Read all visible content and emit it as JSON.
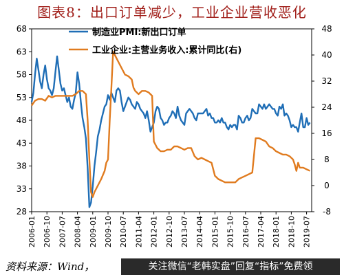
{
  "title": "图表8：出口订单减少，工业企业营收恶化",
  "source": "资料来源：Wind，",
  "watermark": "关注微信“老韩实盘”回复“指标”免费领",
  "colors": {
    "pmi": "#1f6eb6",
    "revenue": "#e07b1f",
    "title": "#a11f1a"
  },
  "chart_data": {
    "type": "line",
    "x_ticks": [
      "2006-01",
      "2006-10",
      "2007-07",
      "2008-04",
      "2009-01",
      "2009-10",
      "2010-07",
      "2011-04",
      "2012-01",
      "2012-10",
      "2013-07",
      "2014-04",
      "2015-01",
      "2015-10",
      "2016-07",
      "2017-04",
      "2018-01",
      "2018-10",
      "2019-07"
    ],
    "y_left": {
      "range": [
        28,
        68
      ],
      "ticks": [
        28,
        33,
        38,
        43,
        48,
        53,
        58,
        63,
        68
      ]
    },
    "y_right": {
      "range": [
        -8,
        48
      ],
      "ticks": [
        -8,
        0,
        8,
        16,
        24,
        32,
        40,
        48
      ]
    },
    "grid": false,
    "legend_position": "top-center",
    "series": [
      {
        "name": "制造业PMI:新出口订单",
        "axis": "left",
        "points": [
          [
            "2006-01",
            52.0
          ],
          [
            "2006-02",
            54.0
          ],
          [
            "2006-03",
            58.0
          ],
          [
            "2006-04",
            61.5
          ],
          [
            "2006-05",
            59.0
          ],
          [
            "2006-06",
            56.5
          ],
          [
            "2006-07",
            55.0
          ],
          [
            "2006-08",
            58.0
          ],
          [
            "2006-09",
            60.0
          ],
          [
            "2006-10",
            57.0
          ],
          [
            "2006-11",
            55.0
          ],
          [
            "2006-12",
            54.5
          ],
          [
            "2007-01",
            53.5
          ],
          [
            "2007-02",
            55.0
          ],
          [
            "2007-03",
            58.5
          ],
          [
            "2007-04",
            62.0
          ],
          [
            "2007-05",
            59.0
          ],
          [
            "2007-06",
            56.0
          ],
          [
            "2007-07",
            54.5
          ],
          [
            "2007-08",
            55.0
          ],
          [
            "2007-09",
            53.5
          ],
          [
            "2007-10",
            52.0
          ],
          [
            "2007-11",
            53.0
          ],
          [
            "2007-12",
            51.0
          ],
          [
            "2008-01",
            50.5
          ],
          [
            "2008-02",
            52.5
          ],
          [
            "2008-03",
            54.0
          ],
          [
            "2008-04",
            58.5
          ],
          [
            "2008-05",
            56.0
          ],
          [
            "2008-06",
            52.0
          ],
          [
            "2008-07",
            48.5
          ],
          [
            "2008-08",
            46.5
          ],
          [
            "2008-09",
            44.0
          ],
          [
            "2008-10",
            37.5
          ],
          [
            "2008-11",
            29.0
          ],
          [
            "2008-12",
            30.0
          ],
          [
            "2009-01",
            33.5
          ],
          [
            "2009-02",
            38.0
          ],
          [
            "2009-03",
            41.0
          ],
          [
            "2009-04",
            44.5
          ],
          [
            "2009-05",
            46.0
          ],
          [
            "2009-06",
            48.0
          ],
          [
            "2009-07",
            49.5
          ],
          [
            "2009-08",
            51.0
          ],
          [
            "2009-09",
            51.5
          ],
          [
            "2009-10",
            53.5
          ],
          [
            "2009-11",
            52.5
          ],
          [
            "2009-12",
            54.0
          ],
          [
            "2010-01",
            53.0
          ],
          [
            "2010-02",
            52.0
          ],
          [
            "2010-03",
            54.5
          ],
          [
            "2010-04",
            55.0
          ],
          [
            "2010-05",
            54.5
          ],
          [
            "2010-06",
            52.0
          ],
          [
            "2010-07",
            50.0
          ],
          [
            "2010-08",
            51.0
          ],
          [
            "2010-09",
            52.0
          ],
          [
            "2010-10",
            53.0
          ],
          [
            "2010-11",
            52.5
          ],
          [
            "2010-12",
            51.5
          ],
          [
            "2011-01",
            51.0
          ],
          [
            "2011-02",
            50.5
          ],
          [
            "2011-03",
            52.0
          ],
          [
            "2011-04",
            51.5
          ],
          [
            "2011-05",
            50.5
          ],
          [
            "2011-06",
            50.0
          ],
          [
            "2011-07",
            49.5
          ],
          [
            "2011-08",
            48.5
          ],
          [
            "2011-09",
            50.0
          ],
          [
            "2011-10",
            48.0
          ],
          [
            "2011-11",
            45.5
          ],
          [
            "2011-12",
            46.5
          ],
          [
            "2012-01",
            47.5
          ],
          [
            "2012-02",
            50.0
          ],
          [
            "2012-03",
            51.0
          ],
          [
            "2012-04",
            50.5
          ],
          [
            "2012-05",
            48.5
          ],
          [
            "2012-06",
            48.0
          ],
          [
            "2012-07",
            47.0
          ],
          [
            "2012-08",
            47.5
          ],
          [
            "2012-09",
            47.5
          ],
          [
            "2012-10",
            48.5
          ],
          [
            "2012-11",
            49.0
          ],
          [
            "2012-12",
            50.0
          ],
          [
            "2013-01",
            49.5
          ],
          [
            "2013-02",
            48.5
          ],
          [
            "2013-03",
            51.0
          ],
          [
            "2013-04",
            49.0
          ],
          [
            "2013-05",
            48.0
          ],
          [
            "2013-06",
            47.5
          ],
          [
            "2013-07",
            47.0
          ],
          [
            "2013-08",
            49.5
          ],
          [
            "2013-09",
            50.0
          ],
          [
            "2013-10",
            50.5
          ],
          [
            "2013-11",
            50.0
          ],
          [
            "2013-12",
            49.5
          ],
          [
            "2014-01",
            48.5
          ],
          [
            "2014-02",
            48.0
          ],
          [
            "2014-03",
            49.5
          ],
          [
            "2014-04",
            49.5
          ],
          [
            "2014-05",
            49.5
          ],
          [
            "2014-06",
            49.5
          ],
          [
            "2014-07",
            50.0
          ],
          [
            "2014-08",
            50.5
          ],
          [
            "2014-09",
            49.0
          ],
          [
            "2014-10",
            49.5
          ],
          [
            "2014-11",
            48.5
          ],
          [
            "2014-12",
            48.5
          ],
          [
            "2015-01",
            47.5
          ],
          [
            "2015-02",
            47.5
          ],
          [
            "2015-03",
            48.0
          ],
          [
            "2015-04",
            47.5
          ],
          [
            "2015-05",
            48.5
          ],
          [
            "2015-06",
            47.5
          ],
          [
            "2015-07",
            47.5
          ],
          [
            "2015-08",
            46.5
          ],
          [
            "2015-09",
            46.0
          ],
          [
            "2015-10",
            47.0
          ],
          [
            "2015-11",
            46.5
          ],
          [
            "2015-12",
            47.0
          ],
          [
            "2016-01",
            47.0
          ],
          [
            "2016-02",
            46.0
          ],
          [
            "2016-03",
            49.0
          ],
          [
            "2016-04",
            48.5
          ],
          [
            "2016-05",
            47.5
          ],
          [
            "2016-06",
            47.5
          ],
          [
            "2016-07",
            48.5
          ],
          [
            "2016-08",
            49.0
          ],
          [
            "2016-09",
            48.0
          ],
          [
            "2016-10",
            48.5
          ],
          [
            "2016-11",
            50.5
          ],
          [
            "2016-12",
            50.0
          ],
          [
            "2017-01",
            49.5
          ],
          [
            "2017-02",
            49.5
          ],
          [
            "2017-03",
            51.5
          ],
          [
            "2017-04",
            51.0
          ],
          [
            "2017-05",
            50.5
          ],
          [
            "2017-06",
            51.5
          ],
          [
            "2017-07",
            50.5
          ],
          [
            "2017-08",
            51.0
          ],
          [
            "2017-09",
            51.5
          ],
          [
            "2017-10",
            51.0
          ],
          [
            "2017-11",
            50.5
          ],
          [
            "2017-12",
            50.5
          ],
          [
            "2018-01",
            49.5
          ],
          [
            "2018-02",
            49.0
          ],
          [
            "2018-03",
            51.0
          ],
          [
            "2018-04",
            50.5
          ],
          [
            "2018-05",
            51.5
          ],
          [
            "2018-06",
            49.0
          ],
          [
            "2018-07",
            49.5
          ],
          [
            "2018-08",
            49.0
          ],
          [
            "2018-09",
            48.0
          ],
          [
            "2018-10",
            46.5
          ],
          [
            "2018-11",
            47.0
          ],
          [
            "2018-12",
            46.5
          ],
          [
            "2019-01",
            46.5
          ],
          [
            "2019-02",
            45.5
          ],
          [
            "2019-03",
            47.5
          ],
          [
            "2019-04",
            49.5
          ],
          [
            "2019-05",
            46.5
          ],
          [
            "2019-06",
            46.5
          ],
          [
            "2019-07",
            48.5
          ],
          [
            "2019-08",
            47.0
          ],
          [
            "2019-09",
            47.5
          ]
        ]
      },
      {
        "name": "工业企业:主营业务收入:累计同比(右)",
        "axis": "right",
        "points": [
          [
            "2006-01",
            24.5
          ],
          [
            "2006-03",
            26.0
          ],
          [
            "2006-05",
            26.5
          ],
          [
            "2006-07",
            26.5
          ],
          [
            "2006-09",
            26.0
          ],
          [
            "2006-11",
            27.5
          ],
          [
            "2007-01",
            27.0
          ],
          [
            "2007-03",
            27.5
          ],
          [
            "2007-05",
            27.5
          ],
          [
            "2007-07",
            27.5
          ],
          [
            "2007-09",
            27.5
          ],
          [
            "2007-11",
            27.5
          ],
          [
            "2008-01",
            27.5
          ],
          [
            "2008-03",
            28.0
          ],
          [
            "2008-05",
            29.0
          ],
          [
            "2008-07",
            29.0
          ],
          [
            "2008-09",
            28.0
          ],
          [
            "2008-10",
            20.0
          ],
          [
            "2008-11",
            8.0
          ],
          [
            "2008-12",
            -2.0
          ],
          [
            "2009-01",
            -3.5
          ],
          [
            "2009-02",
            -2.0
          ],
          [
            "2009-04",
            0.0
          ],
          [
            "2009-06",
            2.0
          ],
          [
            "2009-08",
            4.5
          ],
          [
            "2009-09",
            7.0
          ],
          [
            "2009-10",
            8.0
          ],
          [
            "2009-11",
            20.0
          ],
          [
            "2009-12",
            30.0
          ],
          [
            "2010-01",
            41.0
          ],
          [
            "2010-02",
            40.0
          ],
          [
            "2010-04",
            38.0
          ],
          [
            "2010-06",
            36.0
          ],
          [
            "2010-08",
            34.0
          ],
          [
            "2010-10",
            33.5
          ],
          [
            "2010-12",
            32.5
          ],
          [
            "2011-01",
            30.0
          ],
          [
            "2011-02",
            29.0
          ],
          [
            "2011-04",
            28.0
          ],
          [
            "2011-06",
            29.0
          ],
          [
            "2011-08",
            29.0
          ],
          [
            "2011-10",
            28.5
          ],
          [
            "2011-12",
            27.5
          ],
          [
            "2012-01",
            13.5
          ],
          [
            "2012-03",
            11.5
          ],
          [
            "2012-05",
            10.5
          ],
          [
            "2012-07",
            10.5
          ],
          [
            "2012-09",
            11.0
          ],
          [
            "2012-11",
            11.0
          ],
          [
            "2013-01",
            12.0
          ],
          [
            "2013-03",
            12.0
          ],
          [
            "2013-05",
            11.5
          ],
          [
            "2013-07",
            11.0
          ],
          [
            "2013-09",
            11.5
          ],
          [
            "2013-11",
            11.5
          ],
          [
            "2014-01",
            9.0
          ],
          [
            "2014-03",
            8.0
          ],
          [
            "2014-05",
            8.5
          ],
          [
            "2014-07",
            8.0
          ],
          [
            "2014-09",
            7.5
          ],
          [
            "2014-11",
            7.0
          ],
          [
            "2015-01",
            3.0
          ],
          [
            "2015-03",
            2.0
          ],
          [
            "2015-05",
            1.5
          ],
          [
            "2015-07",
            1.0
          ],
          [
            "2015-09",
            1.0
          ],
          [
            "2015-11",
            1.0
          ],
          [
            "2016-01",
            1.0
          ],
          [
            "2016-03",
            2.0
          ],
          [
            "2016-05",
            2.5
          ],
          [
            "2016-07",
            3.0
          ],
          [
            "2016-09",
            3.5
          ],
          [
            "2016-11",
            4.0
          ],
          [
            "2017-01",
            14.5
          ],
          [
            "2017-03",
            14.5
          ],
          [
            "2017-05",
            14.0
          ],
          [
            "2017-07",
            13.5
          ],
          [
            "2017-09",
            12.0
          ],
          [
            "2017-11",
            11.5
          ],
          [
            "2018-01",
            10.5
          ],
          [
            "2018-03",
            10.0
          ],
          [
            "2018-05",
            9.5
          ],
          [
            "2018-07",
            9.5
          ],
          [
            "2018-09",
            9.0
          ],
          [
            "2018-10",
            8.5
          ],
          [
            "2018-11",
            8.0
          ],
          [
            "2018-12",
            6.5
          ],
          [
            "2019-01",
            4.5
          ],
          [
            "2019-02",
            7.0
          ],
          [
            "2019-03",
            5.5
          ],
          [
            "2019-05",
            5.5
          ],
          [
            "2019-07",
            5.0
          ],
          [
            "2019-09",
            4.5
          ]
        ]
      }
    ]
  }
}
